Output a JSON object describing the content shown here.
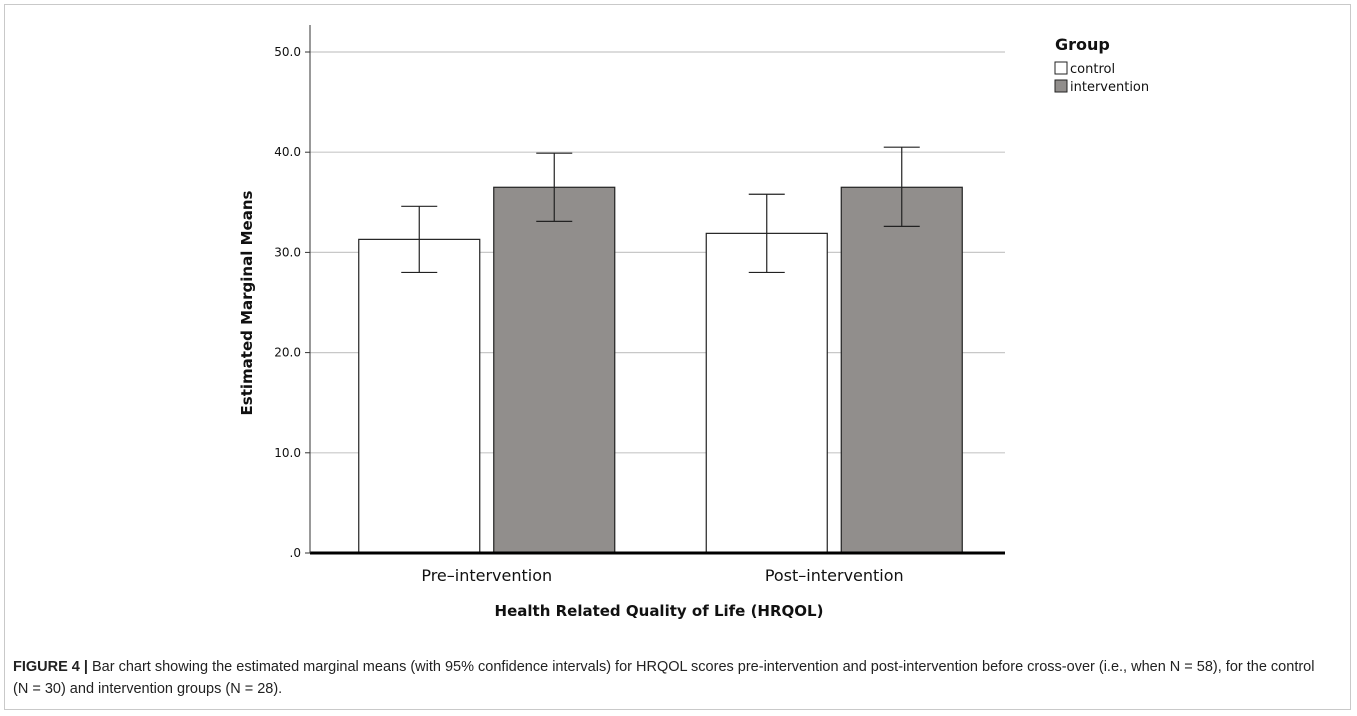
{
  "chart_data": {
    "type": "bar",
    "title": "",
    "xlabel": "Health Related Quality of Life (HRQOL)",
    "ylabel": "Estimated Marginal Means",
    "categories": [
      "Pre–intervention",
      "Post–intervention"
    ],
    "y_ticks": [
      ".0",
      "10.0",
      "20.0",
      "30.0",
      "40.0",
      "50.0"
    ],
    "ylim": [
      0,
      50
    ],
    "grid": true,
    "legend": {
      "title": "Group",
      "placement": "top-right"
    },
    "series": [
      {
        "name": "control",
        "color": "#ffffff",
        "values": [
          31.3,
          31.9
        ],
        "ci_low": [
          28.0,
          28.0
        ],
        "ci_high": [
          34.6,
          35.8
        ]
      },
      {
        "name": "intervention",
        "color": "#918e8c",
        "values": [
          36.5,
          36.5
        ],
        "ci_low": [
          33.1,
          32.6
        ],
        "ci_high": [
          39.9,
          40.5
        ]
      }
    ]
  },
  "caption": {
    "label": "FIGURE 4 |",
    "text": " Bar chart showing the estimated marginal means (with 95% confidence intervals) for HRQOL scores pre-intervention and post-intervention before cross-over (i.e., when N = 58), for the control (N = 30) and intervention groups (N = 28)."
  }
}
